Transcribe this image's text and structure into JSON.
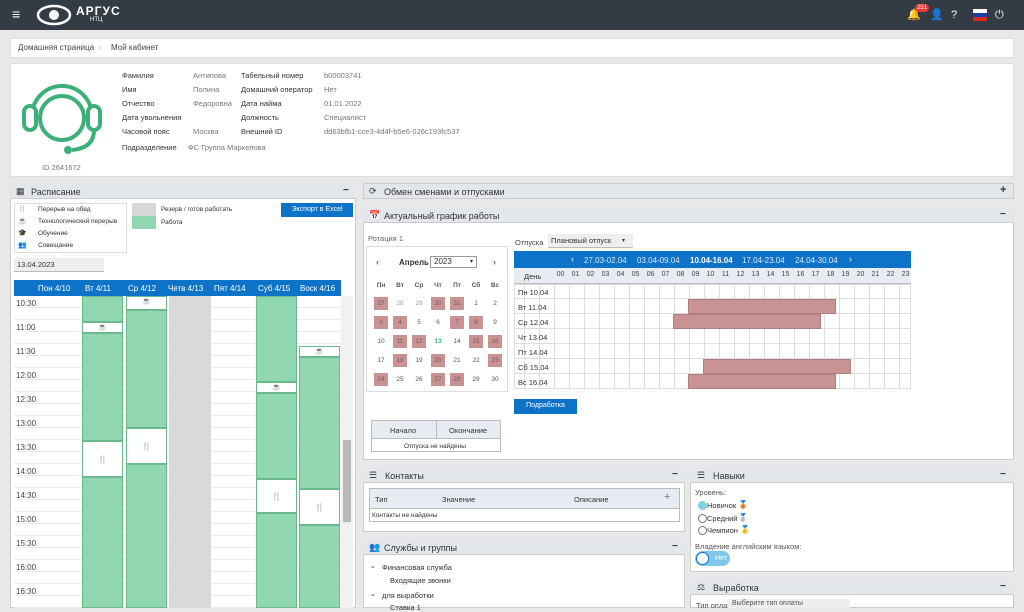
{
  "app": {
    "logo_name": "АРГУС",
    "logo_sub": "НТЦ",
    "notif_count": "251"
  },
  "breadcrumb": {
    "home": "Домашняя страница",
    "current": "Мой кабинет"
  },
  "profile": {
    "id_text": "ID 2641672",
    "fields_left": [
      {
        "label": "Фамилия",
        "value": "Антипова"
      },
      {
        "label": "Имя",
        "value": "Полина"
      },
      {
        "label": "Отчество",
        "value": "Федоровна"
      },
      {
        "label": "Дата увольнения",
        "value": ""
      },
      {
        "label": "Часовой пояс",
        "value": "Москва"
      }
    ],
    "fields_right": [
      {
        "label": "Табельный номер",
        "value": "b00003741"
      },
      {
        "label": "Домашний оператор",
        "value": "Нет"
      },
      {
        "label": "Дата найма",
        "value": "01.01.2022"
      },
      {
        "label": "Должность",
        "value": "Специалист"
      },
      {
        "label": "Внешний ID",
        "value": "dd63bfb1-cce3-4d4f-b5e6-026c193fc537"
      }
    ],
    "division_label": "Подразделение",
    "division_value": "ФС Группа Маркелова"
  },
  "schedule": {
    "title": "Расписание",
    "legend": [
      "Перерыв на обед",
      "Технологический перерыв",
      "Обучение",
      "Совещание",
      "Резерв / готов работать",
      "Работа"
    ],
    "export_label": "Экспорт в Excel",
    "date": "13.04.2023",
    "days": [
      "Пон 4/10",
      "Вт 4/11",
      "Ср 4/12",
      "Четв 4/13",
      "Пят 4/14",
      "Суб 4/15",
      "Воск 4/16"
    ],
    "times": [
      "10:30",
      "11:00",
      "11:30",
      "12:00",
      "12:30",
      "13:00",
      "13:30",
      "14:00",
      "14:30",
      "15:00",
      "15:30",
      "16:00",
      "16:30"
    ]
  },
  "swap": {
    "title": "Обмен сменами и отпусками"
  },
  "actual": {
    "title": "Актуальный график работы",
    "rotation": "Ротация 1",
    "month": "Апрель",
    "year": "2023",
    "weekdays": [
      "Пн",
      "Вт",
      "Ср",
      "Чт",
      "Пт",
      "Сб",
      "Вс"
    ],
    "vac_label": "Отпуска",
    "vac_select": "Плановый отпуск",
    "start_label": "Начало",
    "end_label": "Окончание",
    "no_vac": "Отпуска не найдены",
    "weeks": [
      "27.03-02.04",
      "03.04-09.04",
      "10.04-16.04",
      "17.04-23.04",
      "24.04-30.04"
    ],
    "day_header": "День",
    "hours": [
      "00",
      "01",
      "02",
      "03",
      "04",
      "05",
      "06",
      "07",
      "08",
      "09",
      "10",
      "11",
      "12",
      "13",
      "14",
      "15",
      "16",
      "17",
      "18",
      "19",
      "20",
      "21",
      "22",
      "23"
    ],
    "rows": [
      "Пн 10.04",
      "Вт 11.04",
      "Ср 12.04",
      "Чт 13.04",
      "Пт 14.04",
      "Сб 15.04",
      "Вс 16.04"
    ],
    "work_btn": "Подработка"
  },
  "contacts": {
    "title": "Контакты",
    "type": "Тип",
    "value": "Значение",
    "desc": "Описание",
    "empty": "Контакты не найдены"
  },
  "services": {
    "title": "Службы и группы",
    "items": [
      "Финансовая служба",
      "Входящие звонки",
      "для выработки",
      "Ставка 1"
    ]
  },
  "skills": {
    "title": "Навыки",
    "level_label": "Уровень:",
    "levels": [
      "Новичок",
      "Средний",
      "Чемпион"
    ],
    "english_label": "Владение английским языком:",
    "toggle": "Нет"
  },
  "output": {
    "title": "Выработка",
    "pay_label": "Тип оплаты",
    "pay_placeholder": "Выберите тип оплаты"
  }
}
